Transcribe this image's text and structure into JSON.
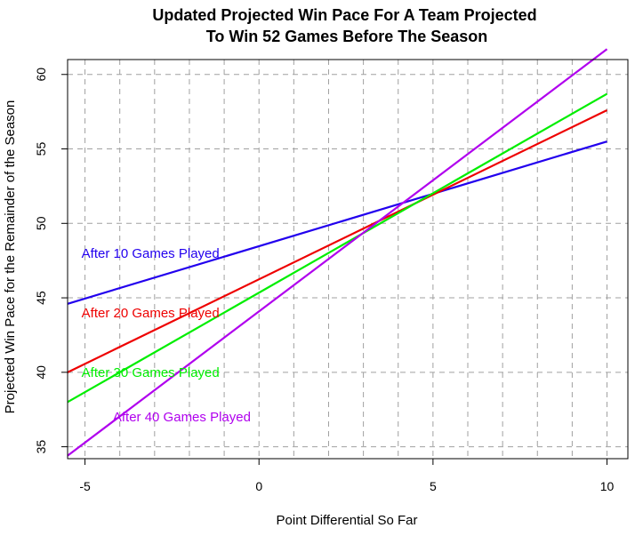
{
  "chart_data": {
    "type": "line",
    "title": "Updated Projected Win Pace For A Team Projected\nTo Win 52 Games Before The Season",
    "xlabel": "Point Differential So Far",
    "ylabel": "Projected Win Pace for the Remainder of the Season",
    "xlim": [
      -5.5,
      10.6
    ],
    "ylim": [
      34.2,
      61.0
    ],
    "xticks": [
      -5,
      0,
      5,
      10
    ],
    "yticks": [
      35,
      40,
      45,
      50,
      55,
      60
    ],
    "grid": true,
    "series": [
      {
        "name": "After 10 Games Played",
        "color": "#2200ee",
        "x": [
          -5.5,
          10
        ],
        "y": [
          44.6,
          55.5
        ]
      },
      {
        "name": "After 20 Games Played",
        "color": "#ee0000",
        "x": [
          -5.5,
          10
        ],
        "y": [
          40.0,
          57.6
        ]
      },
      {
        "name": "After 30 Games Played",
        "color": "#00ee00",
        "x": [
          -5.5,
          10
        ],
        "y": [
          38.0,
          58.7
        ]
      },
      {
        "name": "After 40 Games Played",
        "color": "#b000ee",
        "x": [
          -5.5,
          10
        ],
        "y": [
          34.4,
          61.7
        ]
      }
    ],
    "annotations": [
      {
        "text": "After 10 Games Played",
        "x": -5.1,
        "y": 48.0,
        "color": "#2200ee"
      },
      {
        "text": "After 20 Games Played",
        "x": -5.1,
        "y": 44.0,
        "color": "#ee0000"
      },
      {
        "text": "After 30 Games Played",
        "x": -5.1,
        "y": 40.0,
        "color": "#00ee00"
      },
      {
        "text": "After 40 Games Played",
        "x": -4.2,
        "y": 37.0,
        "color": "#b000ee"
      }
    ]
  }
}
